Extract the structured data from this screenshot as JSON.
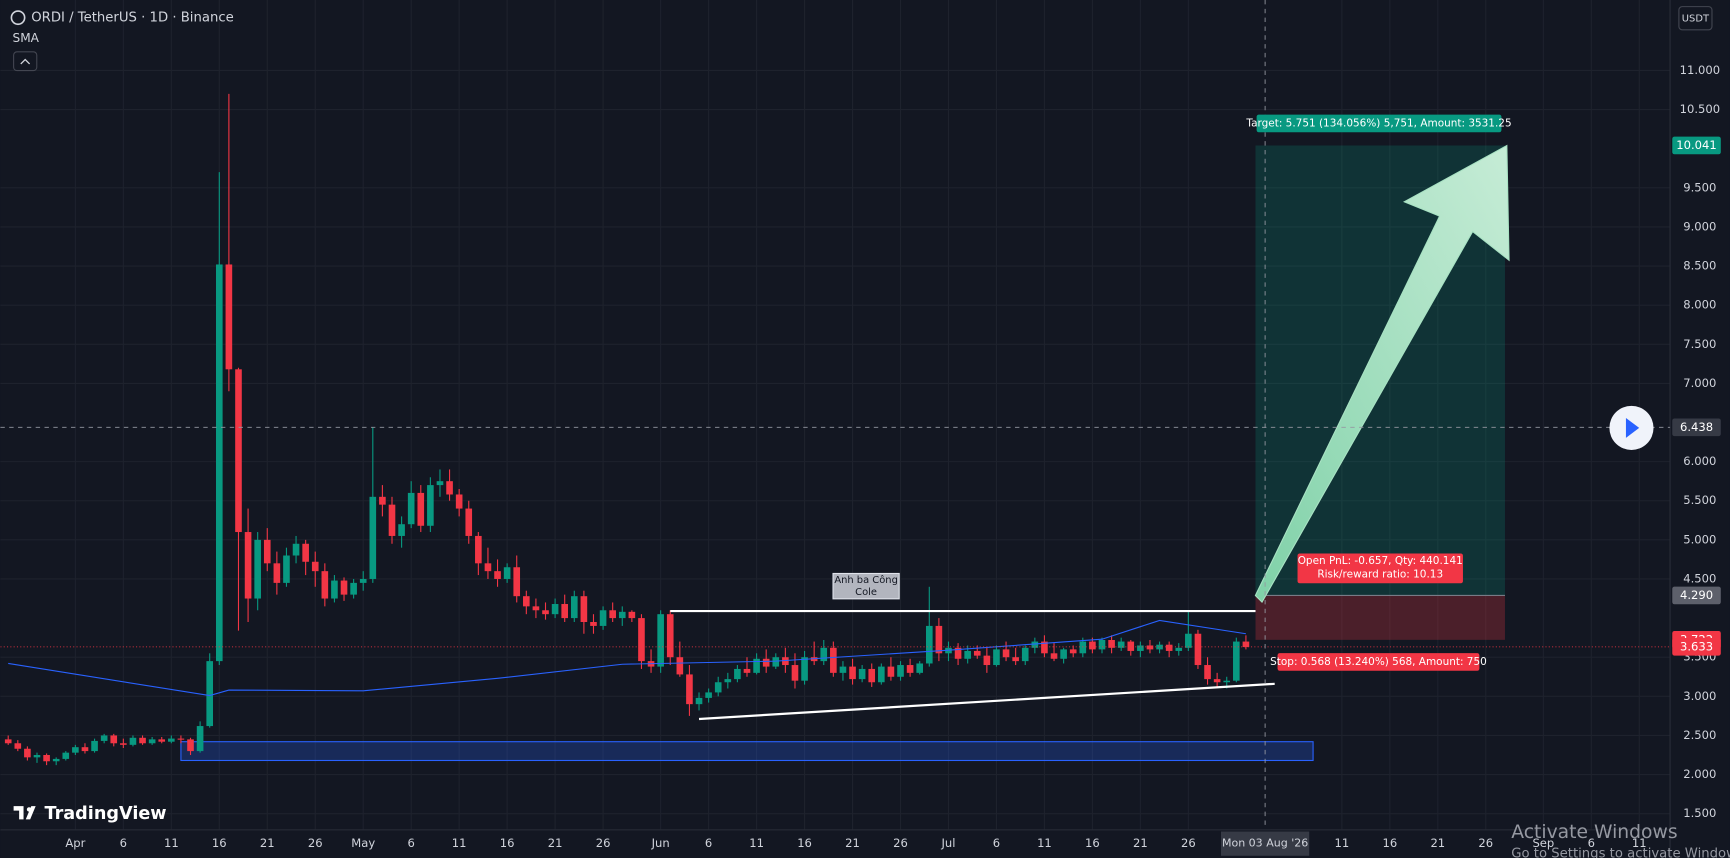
{
  "chart_data": {
    "type": "candlestick",
    "title": "ORDI / TetherUS · 1D · Binance",
    "currency": "USDT",
    "up_color": "#089981",
    "down_color": "#f23645",
    "x": [
      "2026-03-25",
      "2026-03-26",
      "2026-03-27",
      "2026-03-28",
      "2026-03-29",
      "2026-03-30",
      "2026-03-31",
      "2026-04-01",
      "2026-04-02",
      "2026-04-03",
      "2026-04-04",
      "2026-04-05",
      "2026-04-06",
      "2026-04-07",
      "2026-04-08",
      "2026-04-09",
      "2026-04-10",
      "2026-04-11",
      "2026-04-12",
      "2026-04-13",
      "2026-04-14",
      "2026-04-15",
      "2026-04-16",
      "2026-04-17",
      "2026-04-18",
      "2026-04-19",
      "2026-04-20",
      "2026-04-21",
      "2026-04-22",
      "2026-04-23",
      "2026-04-24",
      "2026-04-25",
      "2026-04-26",
      "2026-04-27",
      "2026-04-28",
      "2026-04-29",
      "2026-04-30",
      "2026-05-01",
      "2026-05-02",
      "2026-05-03",
      "2026-05-04",
      "2026-05-05",
      "2026-05-06",
      "2026-05-07",
      "2026-05-08",
      "2026-05-09",
      "2026-05-10",
      "2026-05-11",
      "2026-05-12",
      "2026-05-13",
      "2026-05-14",
      "2026-05-15",
      "2026-05-16",
      "2026-05-17",
      "2026-05-18",
      "2026-05-19",
      "2026-05-20",
      "2026-05-21",
      "2026-05-22",
      "2026-05-23",
      "2026-05-24",
      "2026-05-25",
      "2026-05-26",
      "2026-05-27",
      "2026-05-28",
      "2026-05-29",
      "2026-05-30",
      "2026-05-31",
      "2026-06-01",
      "2026-06-02",
      "2026-06-03",
      "2026-06-04",
      "2026-06-05",
      "2026-06-06",
      "2026-06-07",
      "2026-06-08",
      "2026-06-09",
      "2026-06-10",
      "2026-06-11",
      "2026-06-12",
      "2026-06-13",
      "2026-06-14",
      "2026-06-15",
      "2026-06-16",
      "2026-06-17",
      "2026-06-18",
      "2026-06-19",
      "2026-06-20",
      "2026-06-21",
      "2026-06-22",
      "2026-06-23",
      "2026-06-24",
      "2026-06-25",
      "2026-06-26",
      "2026-06-27",
      "2026-06-28",
      "2026-06-29",
      "2026-06-30",
      "2026-07-01",
      "2026-07-02",
      "2026-07-03",
      "2026-07-04",
      "2026-07-05",
      "2026-07-06",
      "2026-07-07",
      "2026-07-08",
      "2026-07-09",
      "2026-07-10",
      "2026-07-11",
      "2026-07-12",
      "2026-07-13",
      "2026-07-14",
      "2026-07-15",
      "2026-07-16",
      "2026-07-17",
      "2026-07-18",
      "2026-07-19",
      "2026-07-20",
      "2026-07-21",
      "2026-07-22",
      "2026-07-23",
      "2026-07-24",
      "2026-07-25",
      "2026-07-26",
      "2026-07-27",
      "2026-07-28",
      "2026-07-29",
      "2026-07-30",
      "2026-07-31",
      "2026-08-01"
    ],
    "open": [
      2.45,
      2.4,
      2.33,
      2.22,
      2.25,
      2.17,
      2.2,
      2.28,
      2.35,
      2.3,
      2.43,
      2.5,
      2.4,
      2.38,
      2.47,
      2.4,
      2.45,
      2.42,
      2.46,
      2.45,
      2.3,
      2.62,
      3.45,
      8.52,
      7.18,
      5.1,
      4.25,
      5.0,
      4.7,
      4.45,
      4.8,
      4.95,
      4.72,
      4.6,
      4.25,
      4.48,
      4.3,
      4.45,
      4.5,
      5.55,
      5.45,
      5.05,
      5.2,
      5.6,
      5.18,
      5.7,
      5.75,
      5.58,
      5.4,
      5.05,
      4.7,
      4.6,
      4.5,
      4.65,
      4.28,
      4.15,
      4.1,
      4.05,
      4.18,
      4.0,
      4.28,
      3.95,
      3.9,
      4.1,
      4.0,
      4.08,
      4.0,
      3.45,
      3.38,
      4.05,
      3.5,
      3.28,
      2.9,
      2.98,
      3.05,
      3.18,
      3.22,
      3.35,
      3.3,
      3.48,
      3.38,
      3.5,
      3.4,
      3.2,
      3.5,
      3.45,
      3.62,
      3.3,
      3.38,
      3.22,
      3.35,
      3.18,
      3.38,
      3.25,
      3.4,
      3.3,
      3.42,
      3.9,
      3.55,
      3.62,
      3.48,
      3.58,
      3.52,
      3.4,
      3.6,
      3.5,
      3.45,
      3.62,
      3.7,
      3.55,
      3.48,
      3.6,
      3.55,
      3.7,
      3.6,
      3.72,
      3.62,
      3.7,
      3.58,
      3.65,
      3.6,
      3.66,
      3.58,
      3.62,
      3.8,
      3.4,
      3.22,
      3.18,
      3.2,
      3.7
    ],
    "high": [
      2.5,
      2.44,
      2.36,
      2.28,
      2.27,
      2.22,
      2.3,
      2.38,
      2.4,
      2.46,
      2.52,
      2.52,
      2.46,
      2.5,
      2.5,
      2.48,
      2.48,
      2.5,
      2.5,
      2.47,
      2.68,
      3.55,
      9.7,
      10.7,
      7.2,
      5.4,
      5.1,
      5.15,
      4.85,
      4.9,
      5.05,
      5.0,
      4.85,
      4.7,
      4.55,
      4.52,
      4.5,
      4.6,
      6.44,
      5.7,
      5.55,
      5.3,
      5.75,
      5.7,
      5.8,
      5.9,
      5.9,
      5.65,
      5.5,
      5.1,
      4.9,
      4.75,
      4.7,
      4.8,
      4.35,
      4.25,
      4.2,
      4.25,
      4.3,
      4.35,
      4.35,
      4.05,
      4.15,
      4.2,
      4.15,
      4.1,
      4.05,
      3.6,
      4.1,
      4.1,
      3.7,
      3.4,
      3.05,
      3.1,
      3.25,
      3.3,
      3.4,
      3.5,
      3.55,
      3.6,
      3.55,
      3.62,
      3.55,
      3.58,
      3.7,
      3.72,
      3.7,
      3.45,
      3.48,
      3.4,
      3.42,
      3.42,
      3.5,
      3.45,
      3.48,
      3.45,
      4.4,
      4.0,
      3.7,
      3.68,
      3.65,
      3.65,
      3.62,
      3.65,
      3.7,
      3.62,
      3.65,
      3.75,
      3.78,
      3.68,
      3.62,
      3.65,
      3.75,
      3.75,
      3.75,
      3.78,
      3.75,
      3.72,
      3.7,
      3.72,
      3.7,
      3.7,
      3.68,
      4.1,
      3.85,
      3.5,
      3.3,
      3.25,
      3.75,
      3.78
    ],
    "low": [
      2.38,
      2.3,
      2.18,
      2.15,
      2.12,
      2.12,
      2.18,
      2.25,
      2.27,
      2.28,
      2.4,
      2.36,
      2.34,
      2.36,
      2.38,
      2.38,
      2.4,
      2.4,
      2.4,
      2.25,
      2.28,
      2.6,
      3.4,
      6.9,
      3.84,
      3.95,
      4.1,
      4.6,
      4.3,
      4.4,
      4.7,
      4.55,
      4.4,
      4.15,
      4.2,
      4.22,
      4.25,
      4.35,
      4.45,
      5.3,
      4.95,
      4.9,
      5.15,
      5.1,
      5.1,
      5.55,
      5.5,
      5.3,
      4.95,
      4.55,
      4.5,
      4.4,
      4.45,
      4.2,
      4.05,
      4.0,
      3.98,
      4.0,
      3.95,
      3.95,
      3.8,
      3.8,
      3.85,
      3.95,
      3.9,
      3.95,
      3.35,
      3.3,
      3.3,
      3.4,
      3.25,
      2.75,
      2.82,
      2.92,
      3.0,
      3.1,
      3.18,
      3.25,
      3.28,
      3.3,
      3.35,
      3.3,
      3.1,
      3.15,
      3.4,
      3.4,
      3.25,
      3.2,
      3.15,
      3.18,
      3.12,
      3.15,
      3.2,
      3.2,
      3.25,
      3.28,
      3.38,
      3.45,
      3.45,
      3.4,
      3.42,
      3.48,
      3.3,
      3.38,
      3.45,
      3.4,
      3.4,
      3.55,
      3.5,
      3.45,
      3.42,
      3.5,
      3.5,
      3.55,
      3.55,
      3.55,
      3.58,
      3.52,
      3.5,
      3.55,
      3.55,
      3.5,
      3.52,
      3.58,
      3.35,
      3.15,
      3.12,
      3.1,
      3.18,
      3.6
    ],
    "close": [
      2.4,
      2.33,
      2.22,
      2.25,
      2.17,
      2.2,
      2.28,
      2.35,
      2.3,
      2.43,
      2.5,
      2.4,
      2.38,
      2.47,
      2.4,
      2.45,
      2.42,
      2.46,
      2.45,
      2.3,
      2.62,
      3.45,
      8.52,
      7.18,
      5.1,
      4.25,
      5.0,
      4.7,
      4.45,
      4.8,
      4.95,
      4.72,
      4.6,
      4.25,
      4.48,
      4.3,
      4.45,
      4.5,
      5.55,
      5.45,
      5.05,
      5.2,
      5.6,
      5.18,
      5.7,
      5.75,
      5.58,
      5.4,
      5.05,
      4.7,
      4.6,
      4.5,
      4.65,
      4.28,
      4.15,
      4.1,
      4.05,
      4.18,
      4.0,
      4.28,
      3.95,
      3.9,
      4.1,
      4.0,
      4.08,
      4.0,
      3.45,
      3.38,
      4.05,
      3.5,
      3.28,
      2.9,
      2.98,
      3.05,
      3.18,
      3.22,
      3.35,
      3.3,
      3.48,
      3.38,
      3.5,
      3.4,
      3.2,
      3.5,
      3.45,
      3.62,
      3.3,
      3.38,
      3.22,
      3.35,
      3.18,
      3.38,
      3.25,
      3.4,
      3.3,
      3.42,
      3.9,
      3.55,
      3.62,
      3.48,
      3.58,
      3.52,
      3.4,
      3.6,
      3.5,
      3.45,
      3.62,
      3.7,
      3.55,
      3.48,
      3.6,
      3.55,
      3.7,
      3.6,
      3.72,
      3.62,
      3.7,
      3.58,
      3.65,
      3.6,
      3.66,
      3.58,
      3.62,
      3.8,
      3.4,
      3.22,
      3.18,
      3.2,
      3.7,
      3.63
    ],
    "sma": {
      "name": "SMA",
      "color": "#2962ff",
      "x": [
        "2026-03-25",
        "2026-04-15",
        "2026-04-17",
        "2026-05-01",
        "2026-05-15",
        "2026-05-28",
        "2026-06-13",
        "2026-07-01",
        "2026-07-17",
        "2026-07-23",
        "2026-08-01"
      ],
      "values": [
        3.42,
        3.01,
        3.08,
        3.07,
        3.23,
        3.41,
        3.45,
        3.59,
        3.73,
        3.97,
        3.8
      ]
    },
    "zone": {
      "x": [
        "2026-04-12",
        "2026-08-08"
      ],
      "y": [
        2.18,
        2.42
      ],
      "color": "#2962ff"
    },
    "trendlines": [
      {
        "x": [
          "2026-06-02",
          "2026-08-02"
        ],
        "y": [
          4.09,
          4.09
        ]
      },
      {
        "x": [
          "2026-06-05",
          "2026-08-04"
        ],
        "y": [
          2.71,
          3.16
        ]
      }
    ],
    "position": {
      "x": [
        "2026-08-02",
        "2026-08-28"
      ],
      "target": {
        "value": 10.041,
        "label": "10.041"
      },
      "entry": {
        "value": 4.29,
        "label": "4.290"
      },
      "stop": {
        "value": 3.722,
        "label": "3.722"
      },
      "target_label": "Target: 5.751 (134.056%) 5,751, Amount: 3531.25",
      "pnl_label": "Open PnL: -0.657, Qty: 440.141",
      "ratio_label": "Risk/reward ratio: 10.13",
      "stop_label": "Stop: 0.568 (13.240%) 568, Amount: 750"
    },
    "last_price": {
      "value": 3.633,
      "label": "3.633"
    },
    "crosshair": {
      "x": "2026-08-03",
      "x_label": "Mon 03 Aug '26",
      "y": {
        "value": 6.438,
        "label": "6.438"
      }
    },
    "annotation": [
      "Anh ba Công",
      "Cole"
    ],
    "xlim": [
      "2026-03-24",
      "2026-09-14"
    ],
    "xticks": [
      {
        "value": "2026-04-01",
        "label": "Apr"
      },
      {
        "value": "2026-04-06",
        "label": "6"
      },
      {
        "value": "2026-04-11",
        "label": "11"
      },
      {
        "value": "2026-04-16",
        "label": "16"
      },
      {
        "value": "2026-04-21",
        "label": "21"
      },
      {
        "value": "2026-04-26",
        "label": "26"
      },
      {
        "value": "2026-05-01",
        "label": "May"
      },
      {
        "value": "2026-05-06",
        "label": "6"
      },
      {
        "value": "2026-05-11",
        "label": "11"
      },
      {
        "value": "2026-05-16",
        "label": "16"
      },
      {
        "value": "2026-05-21",
        "label": "21"
      },
      {
        "value": "2026-05-26",
        "label": "26"
      },
      {
        "value": "2026-06-01",
        "label": "Jun"
      },
      {
        "value": "2026-06-06",
        "label": "6"
      },
      {
        "value": "2026-06-11",
        "label": "11"
      },
      {
        "value": "2026-06-16",
        "label": "16"
      },
      {
        "value": "2026-06-21",
        "label": "21"
      },
      {
        "value": "2026-06-26",
        "label": "26"
      },
      {
        "value": "2026-07-01",
        "label": "Jul"
      },
      {
        "value": "2026-07-06",
        "label": "6"
      },
      {
        "value": "2026-07-11",
        "label": "11"
      },
      {
        "value": "2026-07-16",
        "label": "16"
      },
      {
        "value": "2026-07-21",
        "label": "21"
      },
      {
        "value": "2026-07-26",
        "label": "26"
      },
      {
        "value": "2026-08-11",
        "label": "11"
      },
      {
        "value": "2026-08-16",
        "label": "16"
      },
      {
        "value": "2026-08-21",
        "label": "21"
      },
      {
        "value": "2026-08-26",
        "label": "26"
      },
      {
        "value": "2026-09-01",
        "label": "Sep"
      },
      {
        "value": "2026-09-06",
        "label": "6"
      },
      {
        "value": "2026-09-11",
        "label": "11"
      }
    ],
    "ylim": [
      1.3,
      11.83
    ],
    "yticks": [
      {
        "value": 1.5,
        "label": "1.500"
      },
      {
        "value": 2,
        "label": "2.000"
      },
      {
        "value": 2.5,
        "label": "2.500"
      },
      {
        "value": 3,
        "label": "3.000"
      },
      {
        "value": 3.5,
        "label": "3.500"
      },
      {
        "value": 4.5,
        "label": "4.500"
      },
      {
        "value": 5,
        "label": "5.000"
      },
      {
        "value": 5.5,
        "label": "5.500"
      },
      {
        "value": 6,
        "label": "6.000"
      },
      {
        "value": 7,
        "label": "7.000"
      },
      {
        "value": 7.5,
        "label": "7.500"
      },
      {
        "value": 8,
        "label": "8.000"
      },
      {
        "value": 8.5,
        "label": "8.500"
      },
      {
        "value": 9,
        "label": "9.000"
      },
      {
        "value": 9.5,
        "label": "9.500"
      },
      {
        "value": 10.5,
        "label": "10.500"
      },
      {
        "value": 11,
        "label": "11.000"
      }
    ],
    "grid": true,
    "watermark": "TradingView",
    "os_notice": [
      "Activate Windows",
      "Go to Settings to activate Windows."
    ]
  }
}
